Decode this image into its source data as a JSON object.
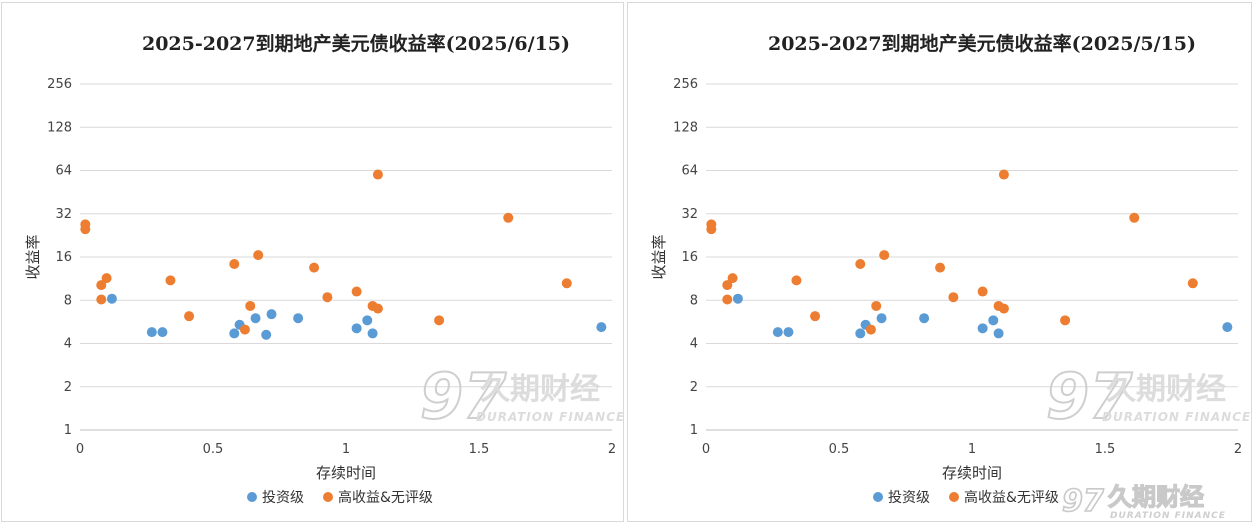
{
  "colors": {
    "investment_grade": "#5b9bd5",
    "high_yield": "#ed7d31"
  },
  "watermark": {
    "glyph": "97",
    "cn": "久期财经",
    "en": "DURATION FINANCE"
  },
  "chart_data": [
    {
      "type": "scatter",
      "title": "2025-2027到期地产美元债收益率(2025/6/15)",
      "xlabel": "存续时间",
      "ylabel": "收益率",
      "xlim": [
        0,
        2
      ],
      "ylim": [
        1,
        256
      ],
      "yscale": "log2",
      "x_ticks": [
        "0",
        "0.5",
        "1",
        "1.5",
        "2"
      ],
      "y_ticks": [
        "1",
        "2",
        "4",
        "8",
        "16",
        "32",
        "64",
        "128",
        "256"
      ],
      "grid": "horizontal",
      "legend_position": "bottom",
      "series": [
        {
          "name": "投资级",
          "color": "#5b9bd5",
          "points": [
            [
              0.12,
              8.2
            ],
            [
              0.27,
              4.8
            ],
            [
              0.31,
              4.8
            ],
            [
              0.58,
              4.7
            ],
            [
              0.6,
              5.4
            ],
            [
              0.66,
              6.0
            ],
            [
              0.7,
              4.6
            ],
            [
              0.72,
              6.4
            ],
            [
              0.82,
              6.0
            ],
            [
              1.04,
              5.1
            ],
            [
              1.08,
              5.8
            ],
            [
              1.1,
              4.7
            ],
            [
              1.96,
              5.2
            ]
          ]
        },
        {
          "name": "高收益&无评级",
          "color": "#ed7d31",
          "points": [
            [
              0.02,
              27
            ],
            [
              0.02,
              25
            ],
            [
              0.08,
              10.2
            ],
            [
              0.08,
              8.1
            ],
            [
              0.1,
              11.4
            ],
            [
              0.34,
              11.0
            ],
            [
              0.41,
              6.2
            ],
            [
              0.58,
              14.3
            ],
            [
              0.62,
              5.0
            ],
            [
              0.64,
              7.3
            ],
            [
              0.67,
              16.5
            ],
            [
              0.88,
              13.5
            ],
            [
              0.93,
              8.4
            ],
            [
              1.04,
              9.2
            ],
            [
              1.1,
              7.3
            ],
            [
              1.12,
              7.0
            ],
            [
              1.12,
              60
            ],
            [
              1.35,
              5.8
            ],
            [
              1.61,
              30
            ],
            [
              1.83,
              10.5
            ]
          ]
        }
      ]
    },
    {
      "type": "scatter",
      "title": "2025-2027到期地产美元债收益率(2025/5/15)",
      "xlabel": "存续时间",
      "ylabel": "收益率",
      "xlim": [
        0,
        2
      ],
      "ylim": [
        1,
        256
      ],
      "yscale": "log2",
      "x_ticks": [
        "0",
        "0.5",
        "1",
        "1.5",
        "2"
      ],
      "y_ticks": [
        "1",
        "2",
        "4",
        "8",
        "16",
        "32",
        "64",
        "128",
        "256"
      ],
      "grid": "horizontal",
      "legend_position": "bottom",
      "series": [
        {
          "name": "投资级",
          "color": "#5b9bd5",
          "points": [
            [
              0.12,
              8.2
            ],
            [
              0.27,
              4.8
            ],
            [
              0.31,
              4.8
            ],
            [
              0.58,
              4.7
            ],
            [
              0.6,
              5.4
            ],
            [
              0.66,
              6.0
            ],
            [
              0.82,
              6.0
            ],
            [
              1.04,
              5.1
            ],
            [
              1.08,
              5.8
            ],
            [
              1.1,
              4.7
            ],
            [
              1.96,
              5.2
            ]
          ]
        },
        {
          "name": "高收益&无评级",
          "color": "#ed7d31",
          "points": [
            [
              0.02,
              27
            ],
            [
              0.02,
              25
            ],
            [
              0.08,
              10.2
            ],
            [
              0.08,
              8.1
            ],
            [
              0.1,
              11.4
            ],
            [
              0.34,
              11.0
            ],
            [
              0.41,
              6.2
            ],
            [
              0.58,
              14.3
            ],
            [
              0.62,
              5.0
            ],
            [
              0.64,
              7.3
            ],
            [
              0.67,
              16.5
            ],
            [
              0.88,
              13.5
            ],
            [
              0.93,
              8.4
            ],
            [
              1.04,
              9.2
            ],
            [
              1.1,
              7.3
            ],
            [
              1.12,
              7.0
            ],
            [
              1.12,
              60
            ],
            [
              1.35,
              5.8
            ],
            [
              1.61,
              30
            ],
            [
              1.83,
              10.5
            ]
          ]
        }
      ]
    }
  ]
}
